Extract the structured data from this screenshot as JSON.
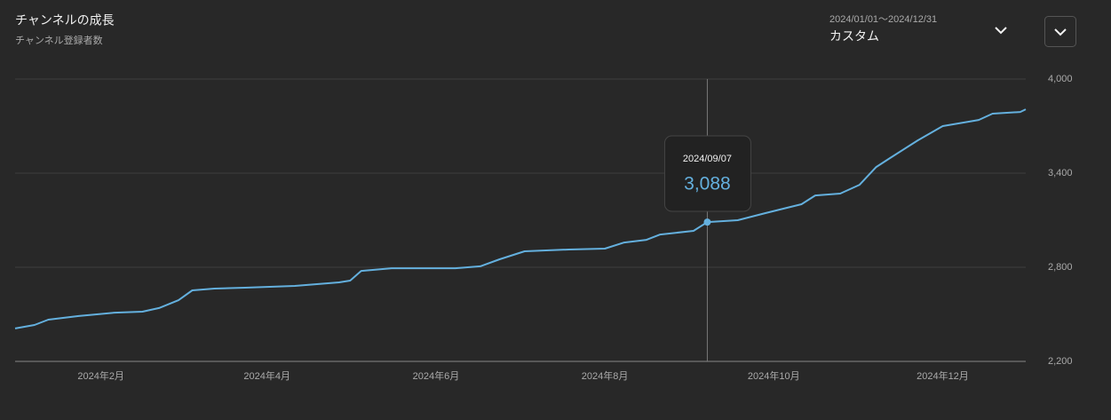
{
  "chart_data": {
    "type": "line",
    "title": "チャンネルの成長",
    "subtitle": "チャンネル登録者数",
    "date_range": "2024/01/01～2024/12/31",
    "period": "カスタム",
    "x": [
      "2024-01-01",
      "2024-01-08",
      "2024-01-13",
      "2024-01-24",
      "2024-02-06",
      "2024-02-16",
      "2024-02-22",
      "2024-02-29",
      "2024-03-05",
      "2024-03-13",
      "2024-03-24",
      "2024-04-11",
      "2024-04-27",
      "2024-05-01",
      "2024-05-05",
      "2024-05-16",
      "2024-06-08",
      "2024-06-17",
      "2024-06-24",
      "2024-07-03",
      "2024-07-19",
      "2024-08-01",
      "2024-08-08",
      "2024-08-16",
      "2024-08-21",
      "2024-09-02",
      "2024-09-07",
      "2024-09-18",
      "2024-09-28",
      "2024-10-11",
      "2024-10-16",
      "2024-10-25",
      "2024-11-01",
      "2024-11-07",
      "2024-11-12",
      "2024-11-22",
      "2024-12-01",
      "2024-12-14",
      "2024-12-19",
      "2024-12-29",
      "2024-12-31"
    ],
    "series": [
      {
        "name": "チャンネル登録者数",
        "color": "#64b0de",
        "values": [
          2410,
          2432,
          2466,
          2489,
          2511,
          2517,
          2540,
          2590,
          2653,
          2664,
          2670,
          2681,
          2704,
          2715,
          2777,
          2794,
          2794,
          2806,
          2851,
          2902,
          2913,
          2919,
          2958,
          2975,
          3009,
          3032,
          3088,
          3100,
          3145,
          3202,
          3258,
          3270,
          3326,
          3439,
          3496,
          3609,
          3700,
          3739,
          3779,
          3790,
          3807
        ]
      }
    ],
    "xlim": [
      "2024-01-01",
      "2024-12-31"
    ],
    "xticks": [
      {
        "value": "2024-02-01",
        "label": "2024年2月"
      },
      {
        "value": "2024-04-01",
        "label": "2024年4月"
      },
      {
        "value": "2024-06-01",
        "label": "2024年6月"
      },
      {
        "value": "2024-08-01",
        "label": "2024年8月"
      },
      {
        "value": "2024-10-01",
        "label": "2024年10月"
      },
      {
        "value": "2024-12-01",
        "label": "2024年12月"
      }
    ],
    "ylim": [
      2200,
      4000
    ],
    "yticks": [
      {
        "value": 2200,
        "label": "2,200"
      },
      {
        "value": 2800,
        "label": "2,800"
      },
      {
        "value": 3400,
        "label": "3,400"
      },
      {
        "value": 4000,
        "label": "4,000"
      }
    ],
    "grid": true,
    "tooltip": {
      "x": "2024-09-07",
      "x_label": "2024/09/07",
      "value": 3088,
      "value_label": "3,088"
    }
  }
}
